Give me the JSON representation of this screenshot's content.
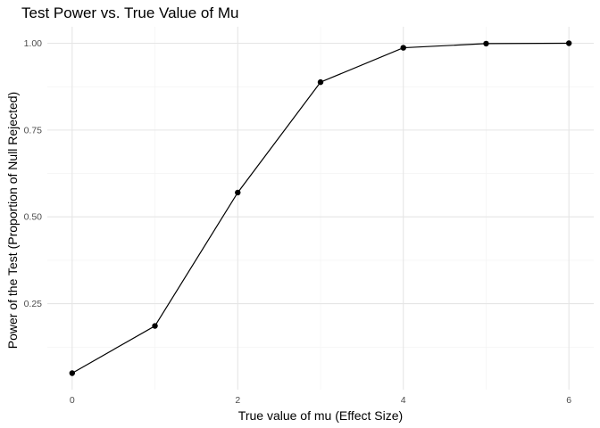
{
  "chart_data": {
    "type": "line",
    "title": "Test Power vs. True Value of Mu",
    "xlabel": "True value of mu (Effect Size)",
    "ylabel": "Power of the Test (Proportion of Null Rejected)",
    "x": [
      0,
      1,
      2,
      3,
      4,
      5,
      6
    ],
    "series": [
      {
        "values": [
          0.05,
          0.186,
          0.57,
          0.888,
          0.987,
          0.999,
          1.0
        ]
      }
    ],
    "xlim": [
      -0.3,
      6.3
    ],
    "ylim": [
      0.0025,
      1.0475
    ],
    "x_ticks": [
      0,
      2,
      4,
      6
    ],
    "x_tick_labels": [
      "0",
      "2",
      "4",
      "6"
    ],
    "y_ticks": [
      0.25,
      0.5,
      0.75,
      1.0
    ],
    "y_tick_labels": [
      "0.25",
      "0.50",
      "0.75",
      "1.00"
    ],
    "grid": true,
    "legend": "none",
    "colors": {
      "line": "#000000",
      "point": "#000000",
      "grid": "#e5e5e5",
      "background": "#ffffff"
    }
  }
}
